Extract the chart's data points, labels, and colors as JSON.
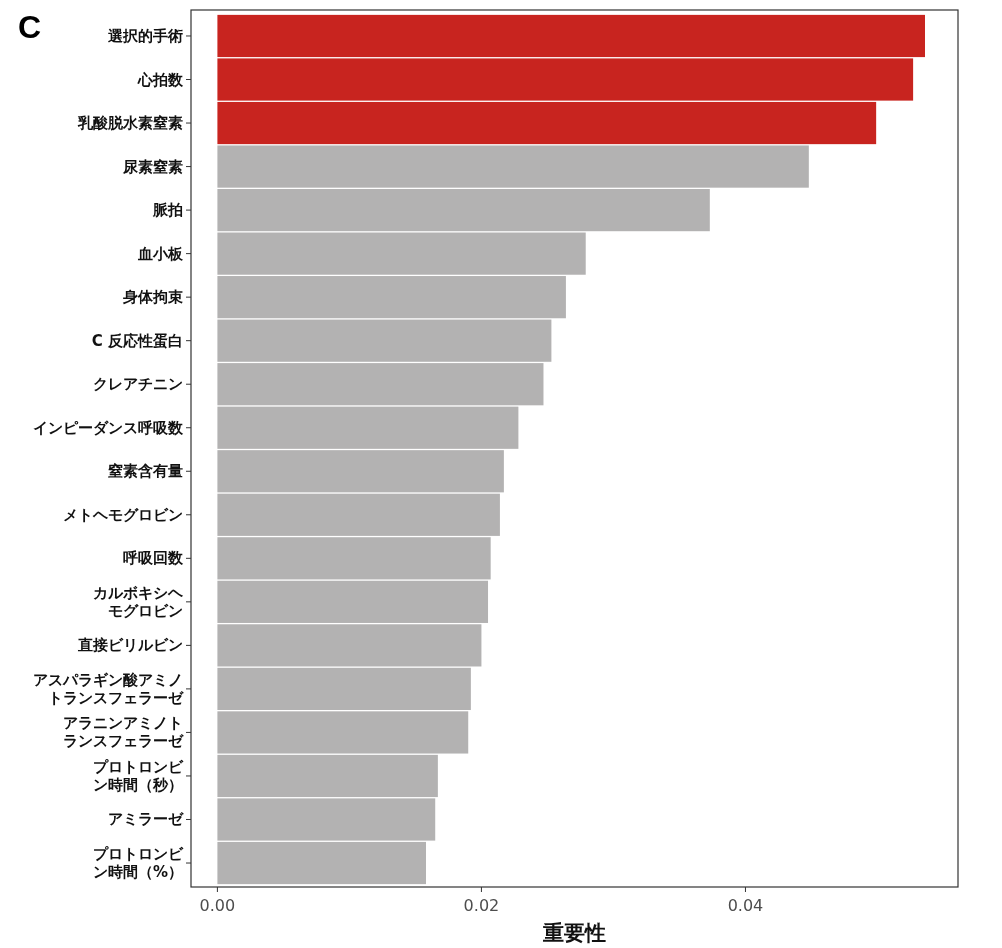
{
  "chart_data": {
    "type": "bar",
    "orientation": "horizontal",
    "xlabel": "重要性",
    "annotations": [
      "C"
    ],
    "categories": [
      "選択的手術",
      "心拍数",
      "乳酸脱水素窒素",
      "尿素窒素",
      "脈拍",
      "血小板",
      "身体拘束",
      "C 反応性蛋白",
      "クレアチニン",
      "インピーダンス呼吸数",
      "窒素含有量",
      "メトヘモグロビン",
      "呼吸回数",
      "カルボキシヘモグロビン",
      "直接ビリルビン",
      "アスパラギン酸アミノトランスフェラーゼ",
      "アラニンアミノトランスフェラーゼ",
      "プロトロンビン時間（秒）",
      "アミラーゼ",
      "プロトロンビン時間（%）"
    ],
    "values": [
      0.0536,
      0.0527,
      0.0499,
      0.0448,
      0.0373,
      0.0279,
      0.0264,
      0.0253,
      0.0247,
      0.0228,
      0.0217,
      0.0214,
      0.0207,
      0.0205,
      0.02,
      0.0192,
      0.019,
      0.0167,
      0.0165,
      0.0158
    ],
    "colors": [
      "#c8241f",
      "#c8241f",
      "#c8241f",
      "#b3b2b2",
      "#b3b2b2",
      "#b3b2b2",
      "#b3b2b2",
      "#b3b2b2",
      "#b3b2b2",
      "#b3b2b2",
      "#b3b2b2",
      "#b3b2b2",
      "#b3b2b2",
      "#b3b2b2",
      "#b3b2b2",
      "#b3b2b2",
      "#b3b2b2",
      "#b3b2b2",
      "#b3b2b2",
      "#b3b2b2"
    ],
    "xlim": [
      -0.002,
      0.0561
    ],
    "xticks": [
      {
        "value": 0,
        "label": "0.00"
      },
      {
        "value": 0.02,
        "label": "0.02"
      },
      {
        "value": 0.04,
        "label": "0.04"
      }
    ],
    "grid": false
  }
}
